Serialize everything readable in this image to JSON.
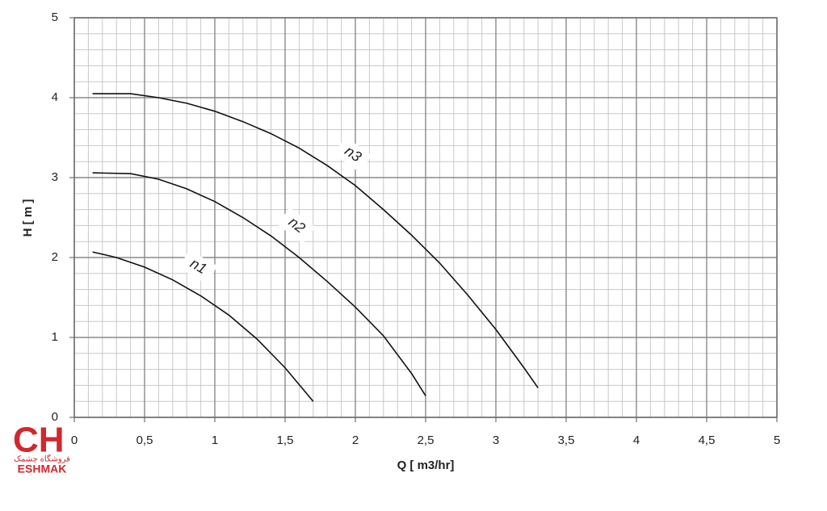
{
  "chart_data": {
    "type": "line",
    "x_label": "Q [ m3/hr]",
    "y_label": "H [ m ]",
    "xlim": [
      0,
      5
    ],
    "ylim": [
      0,
      5
    ],
    "xticks": [
      0,
      {
        "value": 0.5,
        "label": "0,5"
      },
      1,
      {
        "value": 1.5,
        "label": "1,5"
      },
      2,
      {
        "value": 2.5,
        "label": "2,5"
      },
      3,
      {
        "value": 3.5,
        "label": "3,5"
      },
      4,
      {
        "value": 4.5,
        "label": "4,5"
      },
      5
    ],
    "yticks": [
      0,
      1,
      2,
      3,
      4,
      5
    ],
    "grid": true,
    "minor_grid": true,
    "series": [
      {
        "name": "n1",
        "color": "#111111",
        "x": [
          0.13,
          0.3,
          0.5,
          0.7,
          0.9,
          1.1,
          1.3,
          1.5,
          1.7
        ],
        "values": [
          2.07,
          2.0,
          1.88,
          1.72,
          1.52,
          1.28,
          0.98,
          0.62,
          0.2
        ]
      },
      {
        "name": "n2",
        "color": "#111111",
        "x": [
          0.13,
          0.4,
          0.6,
          0.8,
          1.0,
          1.2,
          1.4,
          1.6,
          1.8,
          2.0,
          2.2,
          2.4,
          2.5
        ],
        "values": [
          3.06,
          3.05,
          2.98,
          2.86,
          2.7,
          2.5,
          2.27,
          2.0,
          1.7,
          1.38,
          1.02,
          0.55,
          0.27
        ]
      },
      {
        "name": "n3",
        "color": "#111111",
        "x": [
          0.13,
          0.4,
          0.6,
          0.8,
          1.0,
          1.2,
          1.4,
          1.6,
          1.8,
          2.0,
          2.2,
          2.4,
          2.6,
          2.8,
          3.0,
          3.2,
          3.3
        ],
        "values": [
          4.05,
          4.05,
          4.0,
          3.93,
          3.83,
          3.7,
          3.55,
          3.37,
          3.15,
          2.9,
          2.6,
          2.28,
          1.93,
          1.53,
          1.1,
          0.62,
          0.37
        ]
      }
    ]
  },
  "logo": {
    "mark": "CH",
    "persian": "فروشگاه چشمک",
    "name": "ESHMAK"
  }
}
